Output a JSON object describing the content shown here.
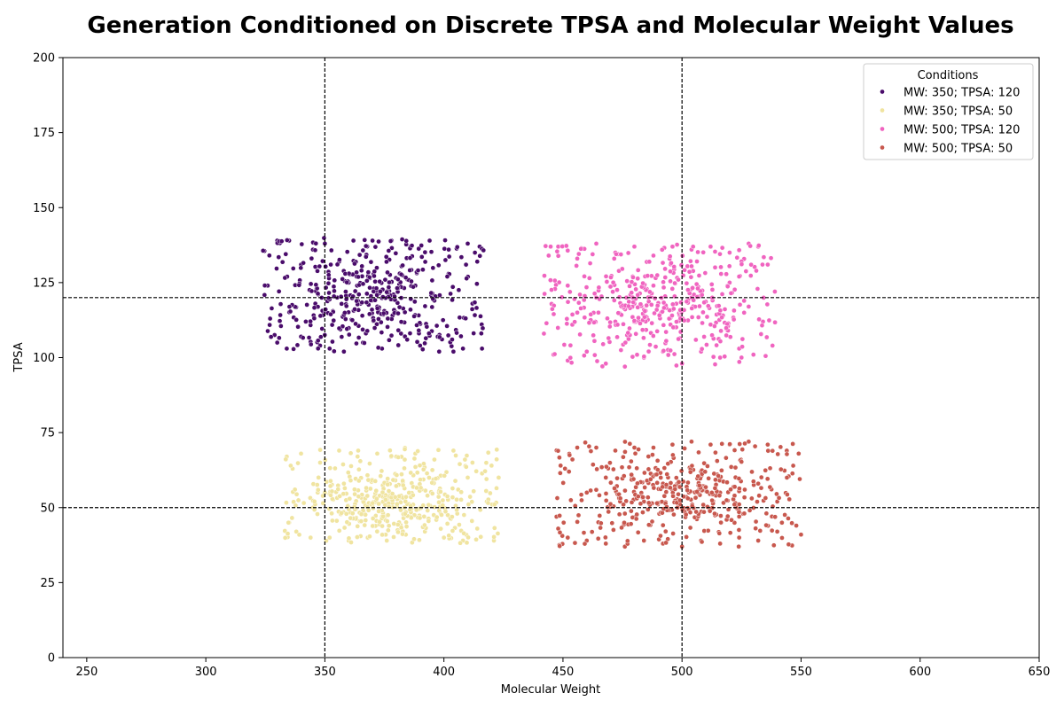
{
  "chart_data": {
    "type": "scatter",
    "title": "Generation Conditioned on Discrete TPSA and Molecular Weight Values",
    "xlabel": "Molecular Weight",
    "ylabel": "TPSA",
    "xlim": [
      240,
      650
    ],
    "ylim": [
      0,
      200
    ],
    "xticks": [
      250,
      300,
      350,
      400,
      450,
      500,
      550,
      600,
      650
    ],
    "yticks": [
      0,
      25,
      50,
      75,
      100,
      125,
      150,
      175,
      200
    ],
    "grid": false,
    "reference_lines": {
      "vertical": [
        350,
        500
      ],
      "horizontal": [
        50,
        120
      ],
      "style": "dashed",
      "color": "#000000"
    },
    "legend": {
      "title": "Conditions",
      "placement": "top-right"
    },
    "series": [
      {
        "name": "MW: 350; TPSA: 120",
        "color": "#4a0c6b",
        "count": 450,
        "x_range": [
          324,
          417
        ],
        "y_range": [
          102,
          140
        ],
        "center": [
          368,
          120
        ],
        "points": [
          [
            330,
            139
          ],
          [
            335,
            139
          ],
          [
            340,
            131
          ],
          [
            345,
            136
          ],
          [
            350,
            138
          ],
          [
            356,
            132
          ],
          [
            362,
            139
          ],
          [
            370,
            139
          ],
          [
            378,
            139
          ],
          [
            386,
            137
          ],
          [
            394,
            139
          ],
          [
            402,
            136
          ],
          [
            410,
            138
          ],
          [
            415,
            137
          ],
          [
            326,
            124
          ],
          [
            327,
            113
          ],
          [
            330,
            105
          ],
          [
            334,
            103
          ],
          [
            340,
            107
          ],
          [
            348,
            104
          ],
          [
            352,
            103
          ],
          [
            358,
            102
          ],
          [
            366,
            105
          ],
          [
            374,
            103
          ],
          [
            382,
            108
          ],
          [
            390,
            104
          ],
          [
            398,
            102
          ],
          [
            404,
            102
          ],
          [
            408,
            103
          ],
          [
            416,
            103
          ],
          [
            360,
            125
          ],
          [
            355,
            120
          ],
          [
            365,
            118
          ],
          [
            372,
            122
          ],
          [
            380,
            115
          ],
          [
            388,
            124
          ],
          [
            396,
            119
          ],
          [
            402,
            128
          ],
          [
            346,
            118
          ],
          [
            342,
            112
          ],
          [
            412,
            118
          ],
          [
            414,
            132
          ]
        ]
      },
      {
        "name": "MW: 350; TPSA: 50",
        "color": "#f0e4a0",
        "count": 450,
        "x_range": [
          333,
          423
        ],
        "y_range": [
          38,
          70
        ],
        "center": [
          375,
          52
        ],
        "points": [
          [
            334,
            67
          ],
          [
            340,
            68
          ],
          [
            348,
            65
          ],
          [
            356,
            69
          ],
          [
            364,
            69
          ],
          [
            372,
            68
          ],
          [
            380,
            67
          ],
          [
            388,
            68
          ],
          [
            396,
            66
          ],
          [
            404,
            69
          ],
          [
            412,
            65
          ],
          [
            420,
            64
          ],
          [
            335,
            45
          ],
          [
            338,
            42
          ],
          [
            344,
            40
          ],
          [
            352,
            40
          ],
          [
            360,
            39
          ],
          [
            368,
            40
          ],
          [
            376,
            39
          ],
          [
            384,
            41
          ],
          [
            392,
            42
          ],
          [
            400,
            40
          ],
          [
            408,
            39
          ],
          [
            414,
            43
          ],
          [
            421,
            39
          ],
          [
            423,
            60
          ],
          [
            350,
            55
          ],
          [
            358,
            58
          ],
          [
            366,
            52
          ],
          [
            374,
            47
          ],
          [
            382,
            54
          ],
          [
            390,
            50
          ],
          [
            398,
            49
          ],
          [
            406,
            56
          ],
          [
            345,
            50
          ],
          [
            418,
            52
          ],
          [
            410,
            60
          ]
        ]
      },
      {
        "name": "MW: 500; TPSA: 120",
        "color": "#f064c0",
        "count": 450,
        "x_range": [
          441,
          540
        ],
        "y_range": [
          97,
          138
        ],
        "center": [
          490,
          118
        ],
        "points": [
          [
            444,
            134
          ],
          [
            448,
            137
          ],
          [
            456,
            133
          ],
          [
            464,
            138
          ],
          [
            472,
            135
          ],
          [
            480,
            137
          ],
          [
            488,
            134
          ],
          [
            496,
            137
          ],
          [
            504,
            136
          ],
          [
            512,
            137
          ],
          [
            520,
            135
          ],
          [
            528,
            138
          ],
          [
            532,
            137
          ],
          [
            536,
            131
          ],
          [
            442,
            108
          ],
          [
            446,
            101
          ],
          [
            452,
            99
          ],
          [
            460,
            102
          ],
          [
            468,
            98
          ],
          [
            476,
            97
          ],
          [
            484,
            100
          ],
          [
            492,
            102
          ],
          [
            500,
            98
          ],
          [
            508,
            102
          ],
          [
            516,
            100
          ],
          [
            524,
            103
          ],
          [
            530,
            101
          ],
          [
            538,
            104
          ],
          [
            539,
            122
          ],
          [
            456,
            115
          ],
          [
            464,
            120
          ],
          [
            472,
            112
          ],
          [
            480,
            118
          ],
          [
            488,
            124
          ],
          [
            496,
            116
          ],
          [
            504,
            120
          ],
          [
            512,
            111
          ],
          [
            520,
            125
          ],
          [
            528,
            117
          ],
          [
            452,
            124
          ],
          [
            534,
            112
          ]
        ]
      },
      {
        "name": "MW: 500; TPSA: 50",
        "color": "#c8584e",
        "count": 450,
        "x_range": [
          447,
          550
        ],
        "y_range": [
          37,
          72
        ],
        "center": [
          497,
          54
        ],
        "points": [
          [
            449,
            64
          ],
          [
            456,
            70
          ],
          [
            464,
            70
          ],
          [
            472,
            69
          ],
          [
            480,
            70
          ],
          [
            488,
            70
          ],
          [
            496,
            71
          ],
          [
            504,
            72
          ],
          [
            512,
            71
          ],
          [
            520,
            71
          ],
          [
            528,
            72
          ],
          [
            536,
            71
          ],
          [
            544,
            69
          ],
          [
            549,
            68
          ],
          [
            448,
            43
          ],
          [
            452,
            40
          ],
          [
            460,
            39
          ],
          [
            468,
            38
          ],
          [
            476,
            37
          ],
          [
            484,
            39
          ],
          [
            492,
            38
          ],
          [
            500,
            37
          ],
          [
            508,
            39
          ],
          [
            516,
            38
          ],
          [
            524,
            40
          ],
          [
            532,
            39
          ],
          [
            540,
            42
          ],
          [
            548,
            44
          ],
          [
            550,
            41
          ],
          [
            460,
            55
          ],
          [
            468,
            60
          ],
          [
            476,
            48
          ],
          [
            484,
            52
          ],
          [
            492,
            58
          ],
          [
            500,
            50
          ],
          [
            508,
            62
          ],
          [
            516,
            55
          ],
          [
            524,
            47
          ],
          [
            532,
            58
          ],
          [
            540,
            52
          ],
          [
            544,
            60
          ]
        ]
      }
    ]
  }
}
